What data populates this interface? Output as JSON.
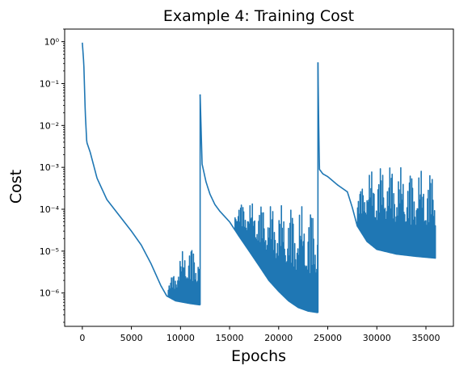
{
  "chart_data": {
    "type": "line",
    "title": "Example 4: Training Cost",
    "xlabel": "Epochs",
    "ylabel": "Cost",
    "yscale": "log",
    "xlim": [
      -1800,
      37800
    ],
    "ylim": [
      1.6e-07,
      2.0
    ],
    "grid": false,
    "line_color": "#1f77b4",
    "x_ticks": [
      {
        "value": 0,
        "label": "0"
      },
      {
        "value": 5000,
        "label": "5000"
      },
      {
        "value": 10000,
        "label": "10000"
      },
      {
        "value": 15000,
        "label": "15000"
      },
      {
        "value": 20000,
        "label": "20000"
      },
      {
        "value": 25000,
        "label": "25000"
      },
      {
        "value": 30000,
        "label": "30000"
      },
      {
        "value": 35000,
        "label": "35000"
      }
    ],
    "y_ticks": [
      {
        "value": 1e-06,
        "label": "10⁻⁶"
      },
      {
        "value": 1e-05,
        "label": "10⁻⁵"
      },
      {
        "value": 0.0001,
        "label": "10⁻⁴"
      },
      {
        "value": 0.001,
        "label": "10⁻³"
      },
      {
        "value": 0.01,
        "label": "10⁻²"
      },
      {
        "value": 0.1,
        "label": "10⁻¹"
      },
      {
        "value": 1,
        "label": "10⁰"
      }
    ],
    "series": [
      {
        "segments": [
          {
            "baseline": [
              [
                0,
                0.95
              ],
              [
                150,
                0.3
              ],
              [
                300,
                0.02
              ],
              [
                450,
                0.004
              ],
              [
                800,
                0.0023
              ],
              [
                1500,
                0.00055
              ],
              [
                2500,
                0.00017
              ],
              [
                4000,
                6e-05
              ],
              [
                5000,
                3e-05
              ],
              [
                6000,
                1.4e-05
              ],
              [
                7000,
                5e-06
              ],
              [
                8000,
                1.5e-06
              ],
              [
                8600,
                8.5e-07
              ],
              [
                9500,
                6.5e-07
              ],
              [
                11000,
                5.6e-07
              ],
              [
                12000,
                5.2e-07
              ]
            ],
            "oscillation": {
              "start": 8700,
              "end": 12000,
              "upper": [
                [
                  8700,
                  1.5e-06
                ],
                [
                  9500,
                  4e-06
                ],
                [
                  10500,
                  1.5e-05
                ],
                [
                  11500,
                  1.3e-05
                ],
                [
                  12000,
                  1.4e-05
                ]
              ]
            }
          },
          {
            "baseline": [
              [
                12000,
                0.055
              ],
              [
                12080,
                0.012
              ],
              [
                12200,
                0.0012
              ],
              [
                12600,
                0.00045
              ],
              [
                13000,
                0.00023
              ],
              [
                13500,
                0.00013
              ],
              [
                14000,
                9e-05
              ],
              [
                15000,
                5e-05
              ],
              [
                16000,
                2.2e-05
              ],
              [
                17000,
                1e-05
              ],
              [
                18000,
                4.5e-06
              ],
              [
                19000,
                2e-06
              ],
              [
                20000,
                1.1e-06
              ],
              [
                21000,
                6.5e-07
              ],
              [
                22000,
                4.5e-07
              ],
              [
                23000,
                3.7e-07
              ],
              [
                24000,
                3.4e-07
              ]
            ],
            "oscillation": {
              "start": 15500,
              "end": 24000,
              "upper": [
                [
                  15500,
                  0.00013
                ],
                [
                  16500,
                  0.00015
                ],
                [
                  20000,
                  0.00013
                ],
                [
                  24000,
                  0.00012
                ]
              ]
            }
          },
          {
            "baseline": [
              [
                24000,
                0.32
              ],
              [
                24080,
                0.01
              ],
              [
                24150,
                0.0009
              ],
              [
                24500,
                0.0007
              ],
              [
                25000,
                0.0006
              ],
              [
                26000,
                0.00038
              ],
              [
                27000,
                0.00026
              ],
              [
                27500,
                0.00011
              ],
              [
                28000,
                4e-05
              ],
              [
                29000,
                1.7e-05
              ],
              [
                30000,
                1.1e-05
              ],
              [
                32000,
                8.5e-06
              ],
              [
                34000,
                7.5e-06
              ],
              [
                36000,
                6.8e-06
              ]
            ],
            "oscillation": {
              "start": 28000,
              "end": 36000,
              "upper": [
                [
                  28000,
                  0.0002
                ],
                [
                  29000,
                  0.0008
                ],
                [
                  31000,
                  0.0013
                ],
                [
                  33000,
                  0.0009
                ],
                [
                  36000,
                  0.00085
                ]
              ]
            }
          }
        ]
      }
    ]
  }
}
